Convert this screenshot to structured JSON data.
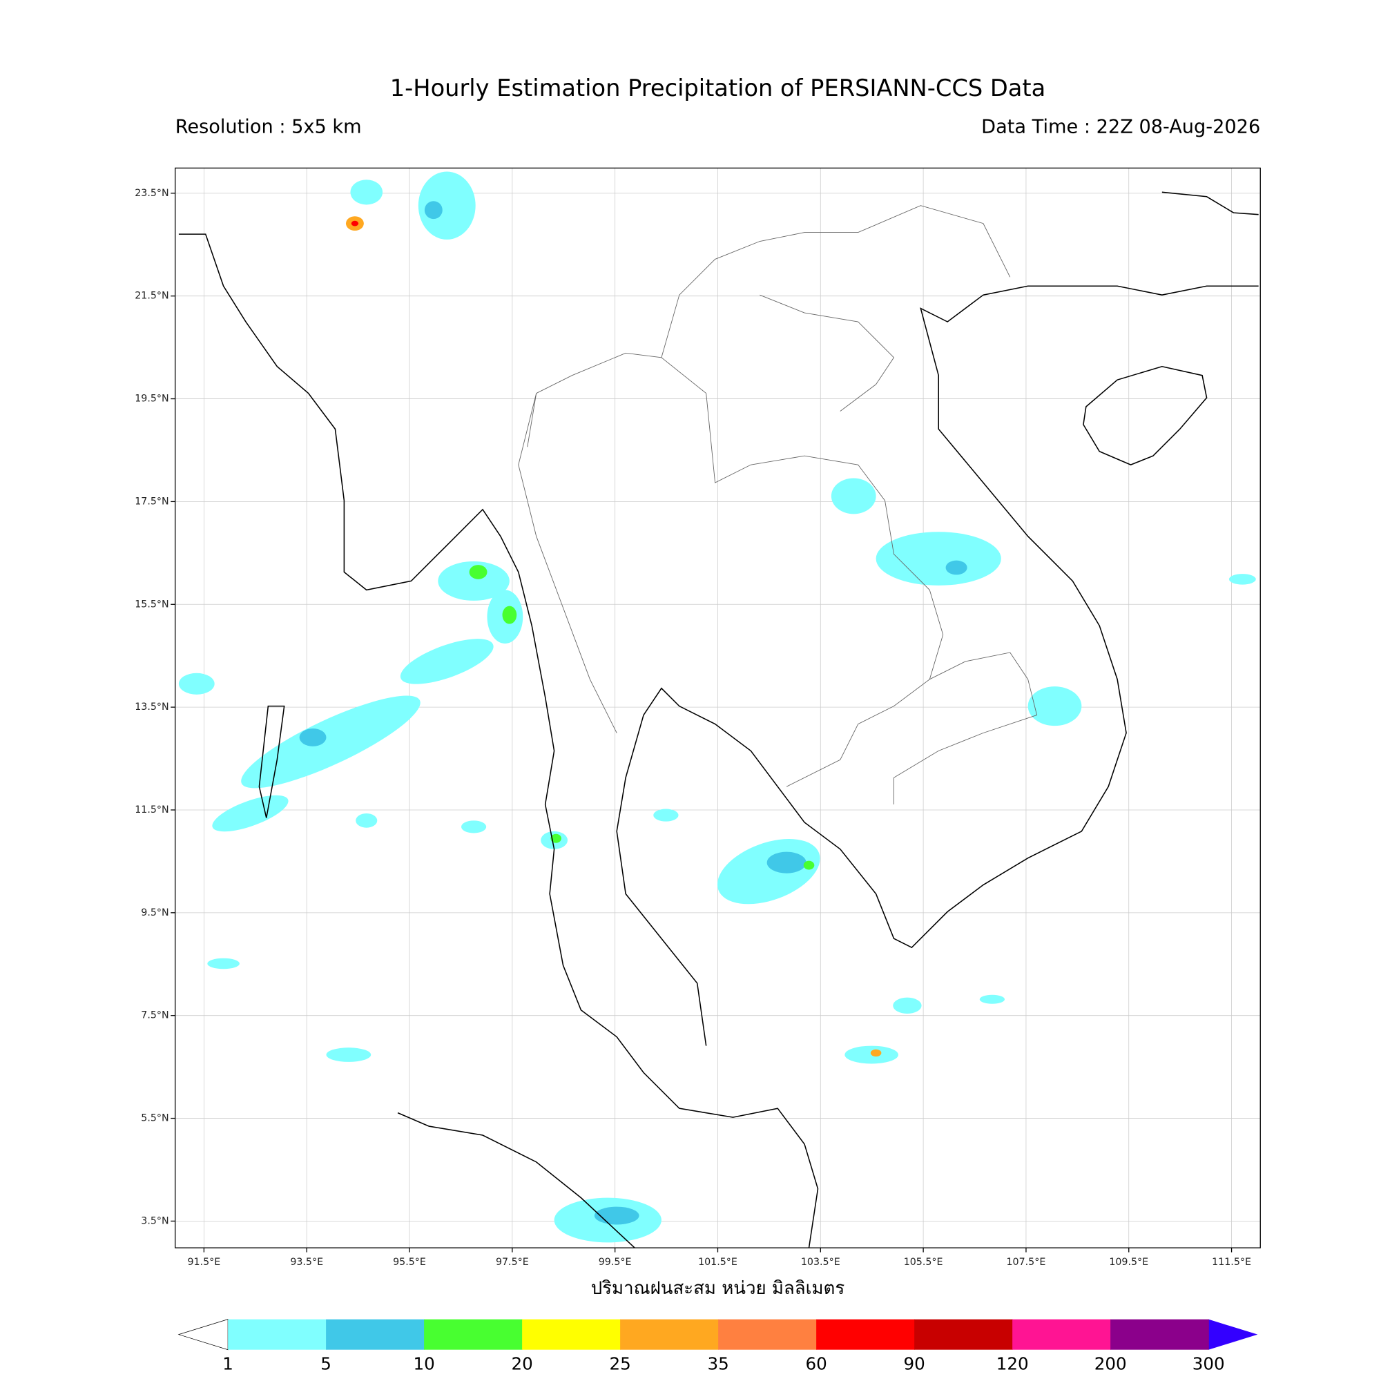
{
  "title": "1-Hourly Estimation Precipitation of PERSIANN-CCS Data",
  "resolution": "Resolution : 5x5 km",
  "data_time": "Data Time : 22Z 08-Aug-2026",
  "map": {
    "xlim": [
      90.94,
      112.06
    ],
    "ylim": [
      2.98,
      23.99
    ],
    "grid": true,
    "xticks": [
      {
        "value": 91.5,
        "label": "91.5°E"
      },
      {
        "value": 93.5,
        "label": "93.5°E"
      },
      {
        "value": 95.5,
        "label": "95.5°E"
      },
      {
        "value": 97.5,
        "label": "97.5°E"
      },
      {
        "value": 99.5,
        "label": "99.5°E"
      },
      {
        "value": 101.5,
        "label": "101.5°E"
      },
      {
        "value": 103.5,
        "label": "103.5°E"
      },
      {
        "value": 105.5,
        "label": "105.5°E"
      },
      {
        "value": 107.5,
        "label": "107.5°E"
      },
      {
        "value": 109.5,
        "label": "109.5°E"
      },
      {
        "value": 111.5,
        "label": "111.5°E"
      }
    ],
    "yticks": [
      {
        "value": 3.5,
        "label": "3.5°N"
      },
      {
        "value": 5.5,
        "label": "5.5°N"
      },
      {
        "value": 7.5,
        "label": "7.5°N"
      },
      {
        "value": 9.5,
        "label": "9.5°N"
      },
      {
        "value": 11.5,
        "label": "11.5°N"
      },
      {
        "value": 13.5,
        "label": "13.5°N"
      },
      {
        "value": 15.5,
        "label": "15.5°N"
      },
      {
        "value": 17.5,
        "label": "17.5°N"
      },
      {
        "value": 19.5,
        "label": "19.5°N"
      },
      {
        "value": 21.5,
        "label": "21.5°N"
      },
      {
        "value": 23.5,
        "label": "23.5°N"
      }
    ]
  },
  "colorbar": {
    "label": "ปริมาณฝนสะสม หน่วย มิลลิเมตร",
    "levels": [
      1,
      5,
      10,
      20,
      25,
      35,
      60,
      90,
      120,
      200,
      300
    ],
    "colors": [
      "#80ffff",
      "#40c8e8",
      "#48ff30",
      "#ffff00",
      "#ffa820",
      "#ff8040",
      "#ff0000",
      "#c80000",
      "#ff1493",
      "#8b008b"
    ],
    "under_color": "#ffffff",
    "over_color": "#3300ff"
  }
}
